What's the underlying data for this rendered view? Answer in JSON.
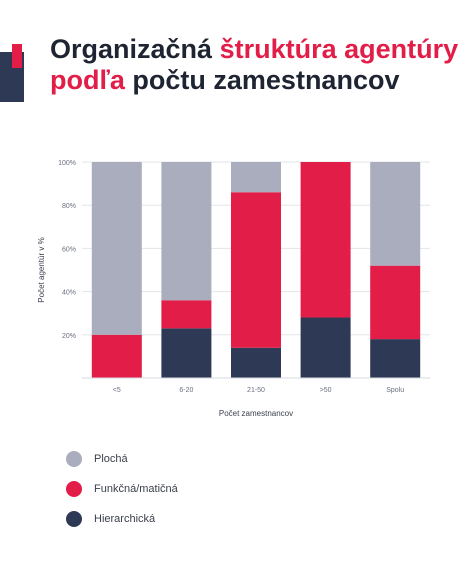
{
  "title": {
    "part1": "Organizačná ",
    "highlight1": "štruktúra agentúry podľa",
    "part2": " počtu zamestnancov"
  },
  "colors": {
    "plocha": "#a9adbd",
    "funkcna": "#e11d48",
    "hierarchicka": "#2e3a55",
    "accent": "#e11d48",
    "text": "#1f2432"
  },
  "chart_data": {
    "type": "bar",
    "stacked": true,
    "categories": [
      "<5",
      "6-20",
      "21-50",
      ">50",
      "Spolu"
    ],
    "series": [
      {
        "name": "Hierarchická",
        "values": [
          0,
          23,
          14,
          28,
          18
        ]
      },
      {
        "name": "Funkčná/matičná",
        "values": [
          20,
          13,
          72,
          72,
          34
        ]
      },
      {
        "name": "Plochá",
        "values": [
          80,
          64,
          14,
          0,
          48
        ]
      }
    ],
    "ylabel": "Počet agentúr v %",
    "xlabel": "Počet zamestnancov",
    "ylim": [
      0,
      100
    ],
    "yticks": [
      "",
      "20%",
      "40%",
      "60%",
      "80%",
      "100%"
    ],
    "grid": true,
    "legend_placement": "bottom-left"
  },
  "legend": {
    "items": [
      {
        "label": "Plochá",
        "color": "#a9adbd"
      },
      {
        "label": "Funkčná/matičná",
        "color": "#e11d48"
      },
      {
        "label": "Hierarchická",
        "color": "#2e3a55"
      }
    ]
  }
}
